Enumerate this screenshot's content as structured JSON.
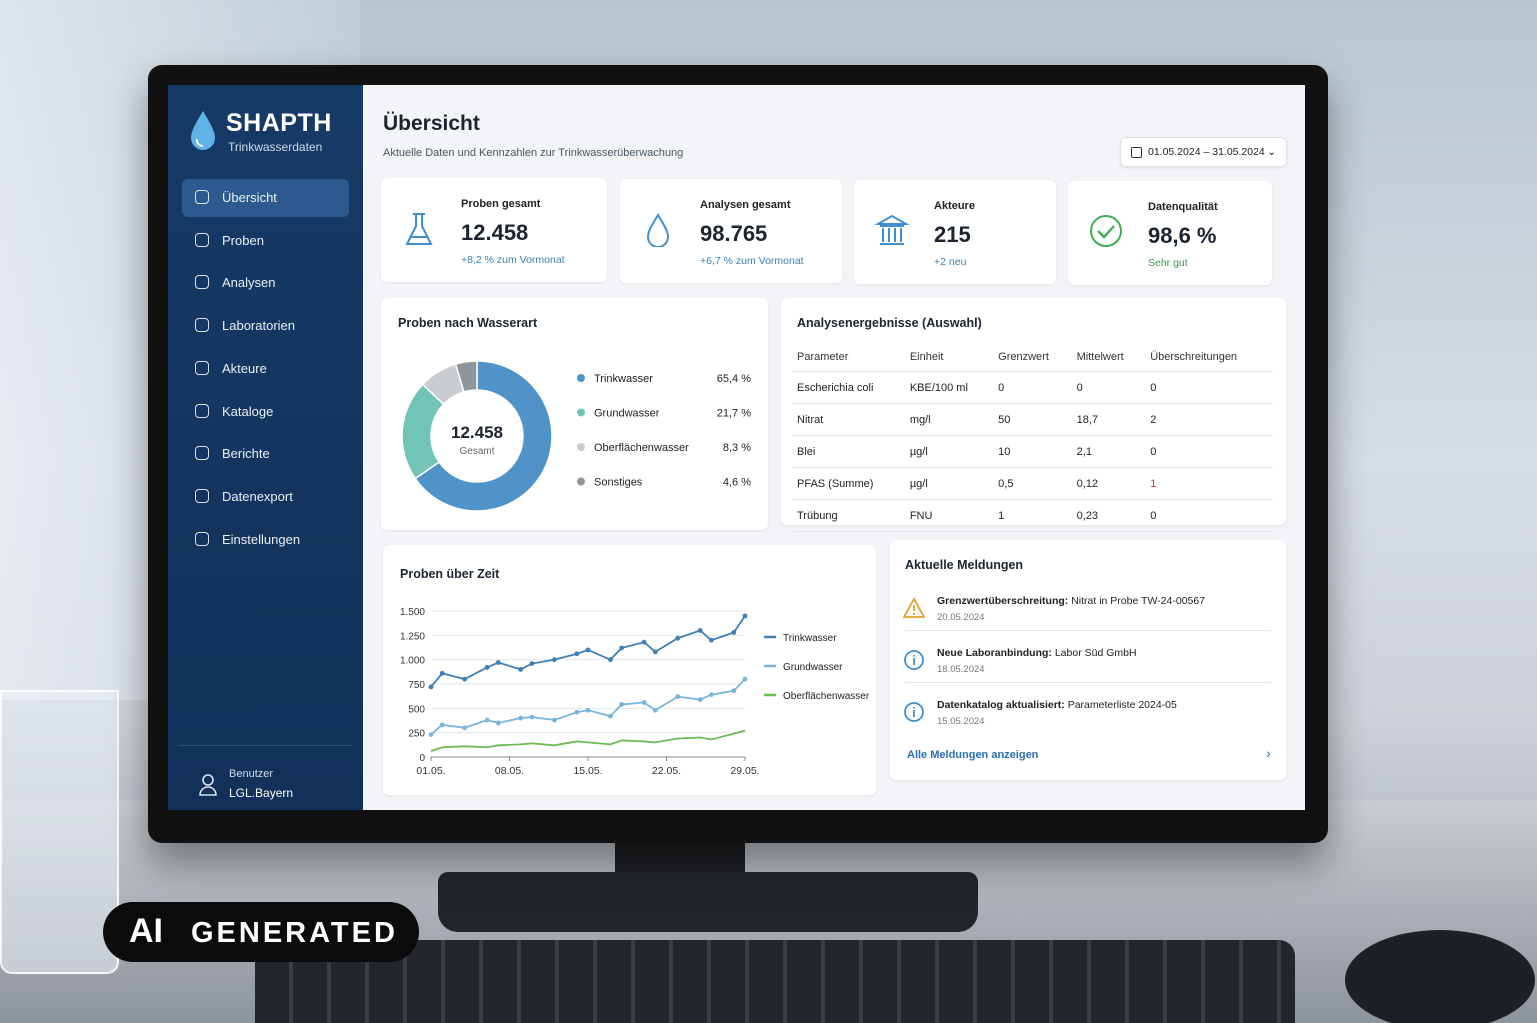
{
  "sidebar": {
    "brand": "SHAPTH",
    "subtitle": "Trinkwasserdaten",
    "nav": [
      "Übersicht",
      "Proben",
      "Analysen",
      "Laboratorien",
      "Akteure",
      "Kataloge",
      "Berichte",
      "Datenexport",
      "Einstellungen"
    ],
    "user_label": "Benutzer",
    "user_name": "LGL.Bayern"
  },
  "header": {
    "title": "Übersicht",
    "subtitle": "Aktuelle Daten und Kennzahlen zur Trinkwasserüberwachung",
    "date_range": "01.05.2024 – 31.05.2024"
  },
  "kpis": [
    {
      "label": "Proben gesamt",
      "value": "12.458",
      "note": "+8,2 % zum Vormonat"
    },
    {
      "label": "Analysen gesamt",
      "value": "98.765",
      "note": "+6,7 % zum Vormonat"
    },
    {
      "label": "Akteure",
      "value": "215",
      "note": "+2 neu"
    },
    {
      "label": "Datenqualität",
      "value": "98,6 %",
      "note": "Sehr gut"
    }
  ],
  "chart_data": [
    {
      "type": "donut",
      "title": "Proben nach Wasserart",
      "center_label": "12.458",
      "center_caption": "Gesamt",
      "categories": [
        "Trinkwasser",
        "Grundwasser",
        "Oberflächenwasser",
        "Sonstiges"
      ],
      "values": [
        65.4,
        21.7,
        8.3,
        4.6
      ],
      "value_labels": [
        "65,4 %",
        "21,7 %",
        "8,3 %",
        "4,6 %"
      ],
      "colors": [
        "#4f93c9",
        "#72c5b6",
        "#c9cdd1",
        "#8e959b"
      ]
    },
    {
      "type": "line",
      "title": "Proben über Zeit",
      "x": [
        1,
        2,
        4,
        6,
        7,
        9,
        10,
        12,
        14,
        15,
        17,
        18,
        20,
        21,
        23,
        25,
        26,
        28,
        29
      ],
      "xlim": [
        1,
        29
      ],
      "xticks": [
        {
          "value": 1,
          "label": "01.05."
        },
        {
          "value": 8,
          "label": "08.05."
        },
        {
          "value": 15,
          "label": "15.05."
        },
        {
          "value": 22,
          "label": "22.05."
        },
        {
          "value": 29,
          "label": "29.05."
        }
      ],
      "ylim": [
        0,
        1500
      ],
      "yticks": [
        0,
        250,
        500,
        750,
        {
          "value": 1000,
          "label": "1.000"
        },
        {
          "value": 1250,
          "label": "1.250"
        },
        {
          "value": 1500,
          "label": "1.500"
        }
      ],
      "grid": true,
      "series": [
        {
          "name": "Trinkwasser",
          "color": "#3f7fba",
          "values": [
            720,
            860,
            800,
            920,
            970,
            900,
            960,
            1000,
            1060,
            1100,
            1000,
            1120,
            1180,
            1080,
            1220,
            1300,
            1200,
            1280,
            1450
          ]
        },
        {
          "name": "Grundwasser",
          "color": "#7ab4dd",
          "values": [
            230,
            330,
            300,
            380,
            350,
            400,
            410,
            380,
            460,
            480,
            420,
            540,
            560,
            480,
            620,
            590,
            640,
            680,
            800
          ]
        },
        {
          "name": "Oberflächenwasser",
          "color": "#6dbb54",
          "values": [
            60,
            100,
            110,
            100,
            120,
            130,
            140,
            120,
            160,
            150,
            130,
            170,
            160,
            150,
            190,
            200,
            180,
            240,
            270
          ]
        }
      ]
    }
  ],
  "table": {
    "title": "Analysenergebnisse (Auswahl)",
    "columns": [
      "Parameter",
      "Einheit",
      "Grenzwert",
      "Mittelwert",
      "Überschreitungen"
    ],
    "rows": [
      [
        "Escherichia coli",
        "KBE/100 ml",
        "0",
        "0",
        "0"
      ],
      [
        "Nitrat",
        "mg/l",
        "50",
        "18,7",
        "2"
      ],
      [
        "Blei",
        "µg/l",
        "10",
        "2,1",
        "0"
      ],
      [
        "PFAS (Summe)",
        "µg/l",
        "0,5",
        "0,12",
        "1"
      ],
      [
        "Trübung",
        "FNU",
        "1",
        "0,23",
        "0"
      ]
    ]
  },
  "messages": {
    "title": "Aktuelle Meldungen",
    "items": [
      {
        "title": "Grenzwertüberschreitung:",
        "text": "Nitrat in Probe TW-24-00567",
        "date": "20.05.2024",
        "icon": "warning"
      },
      {
        "title": "Neue Laboranbindung:",
        "text": "Labor Süd GmbH",
        "date": "18.05.2024",
        "icon": "info"
      },
      {
        "title": "Datenkatalog aktualisiert:",
        "text": "Parameterliste 2024-05",
        "date": "15.05.2024",
        "icon": "info"
      }
    ],
    "link": "Alle Meldungen anzeigen"
  },
  "badge": {
    "mark": "AI",
    "text": "GENERATED"
  }
}
